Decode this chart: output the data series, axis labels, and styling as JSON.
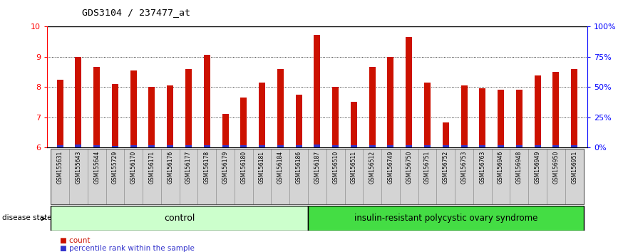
{
  "title": "GDS3104 / 237477_at",
  "samples": [
    "GSM155631",
    "GSM155643",
    "GSM155644",
    "GSM155729",
    "GSM156170",
    "GSM156171",
    "GSM156176",
    "GSM156177",
    "GSM156178",
    "GSM156179",
    "GSM156180",
    "GSM156181",
    "GSM156184",
    "GSM156186",
    "GSM156187",
    "GSM156510",
    "GSM156511",
    "GSM156512",
    "GSM156749",
    "GSM156750",
    "GSM156751",
    "GSM156752",
    "GSM156753",
    "GSM156763",
    "GSM156946",
    "GSM156948",
    "GSM156949",
    "GSM156950",
    "GSM156951"
  ],
  "values": [
    8.25,
    9.0,
    8.67,
    8.1,
    8.55,
    8.0,
    8.05,
    8.6,
    9.07,
    7.12,
    7.65,
    8.15,
    8.6,
    7.75,
    9.72,
    8.0,
    7.5,
    8.67,
    9.0,
    9.65,
    8.15,
    6.82,
    8.05,
    7.95,
    7.9,
    7.9,
    8.38,
    8.5,
    8.6
  ],
  "percentile_values": [
    0.08,
    0.09,
    0.08,
    0.06,
    0.08,
    0.07,
    0.07,
    0.07,
    0.07,
    0.07,
    0.07,
    0.07,
    0.07,
    0.07,
    0.09,
    0.07,
    0.07,
    0.07,
    0.08,
    0.08,
    0.07,
    0.07,
    0.07,
    0.07,
    0.07,
    0.07,
    0.07,
    0.07,
    0.08
  ],
  "control_count": 14,
  "bar_color": "#CC1100",
  "percentile_color": "#3333CC",
  "ylim_left": [
    6,
    10
  ],
  "ylim_right": [
    0,
    100
  ],
  "yticks_left": [
    6,
    7,
    8,
    9,
    10
  ],
  "yticks_right": [
    0,
    25,
    50,
    75,
    100
  ],
  "ytick_labels_right": [
    "0%",
    "25%",
    "50%",
    "75%",
    "100%"
  ],
  "control_label": "control",
  "disease_label": "insulin-resistant polycystic ovary syndrome",
  "disease_state_label": "disease state",
  "legend_count_label": "count",
  "legend_percentile_label": "percentile rank within the sample",
  "control_color": "#ccffcc",
  "disease_color": "#44dd44",
  "label_bg_color": "#d4d4d4"
}
